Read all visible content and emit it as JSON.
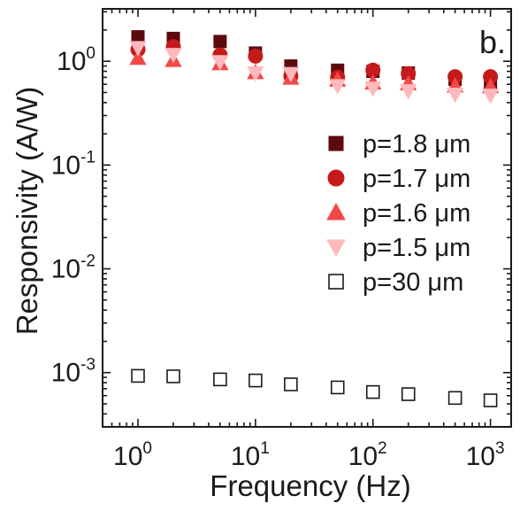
{
  "chart_data": {
    "type": "scatter",
    "title": "",
    "panel_label": "b.",
    "xlabel": "Frequency (Hz)",
    "ylabel": "Responsivity (A/W)",
    "xscale": "log",
    "yscale": "log",
    "xlim": [
      0.5,
      1500
    ],
    "ylim": [
      0.0003,
      3.2
    ],
    "x_ticks": [
      {
        "value": 1,
        "base": "10",
        "exp": "0"
      },
      {
        "value": 10,
        "base": "10",
        "exp": "1"
      },
      {
        "value": 100,
        "base": "10",
        "exp": "2"
      },
      {
        "value": 1000,
        "base": "10",
        "exp": "3"
      }
    ],
    "y_ticks": [
      {
        "value": 0.001,
        "base": "10",
        "exp": "-3"
      },
      {
        "value": 0.01,
        "base": "10",
        "exp": "-2"
      },
      {
        "value": 0.1,
        "base": "10",
        "exp": "-1"
      },
      {
        "value": 1,
        "base": "10",
        "exp": "0"
      }
    ],
    "grid": false,
    "legend_position": "right",
    "x": [
      1,
      2,
      5,
      10,
      20,
      50,
      100,
      200,
      500,
      1000
    ],
    "series": [
      {
        "name": "p=1.8 μm",
        "marker": "square",
        "filled": true,
        "color": "#5c0a0e",
        "values": [
          1.72,
          1.66,
          1.55,
          1.2,
          0.9,
          0.82,
          0.8,
          0.77,
          0.67,
          0.6
        ]
      },
      {
        "name": "p=1.7 μm",
        "marker": "circle",
        "filled": true,
        "color": "#c41a1a",
        "values": [
          1.3,
          1.38,
          1.15,
          1.12,
          0.72,
          0.7,
          0.82,
          0.76,
          0.71,
          0.71
        ]
      },
      {
        "name": "p=1.6 μm",
        "marker": "triangle-up",
        "filled": true,
        "color": "#f24848",
        "values": [
          1.07,
          1.02,
          0.95,
          0.78,
          0.69,
          0.66,
          0.62,
          0.61,
          0.58,
          0.57
        ]
      },
      {
        "name": "p=1.5 μm",
        "marker": "triangle-down",
        "filled": true,
        "color": "#ffb8bc",
        "values": [
          1.35,
          1.16,
          0.99,
          0.77,
          0.76,
          0.58,
          0.55,
          0.52,
          0.48,
          0.47
        ]
      },
      {
        "name": "p=30 μm",
        "marker": "square",
        "filled": false,
        "color": "#1a1a1a",
        "values": [
          0.00093,
          0.00092,
          0.00086,
          0.00084,
          0.00077,
          0.00072,
          0.00065,
          0.00062,
          0.00057,
          0.00054
        ]
      }
    ]
  }
}
